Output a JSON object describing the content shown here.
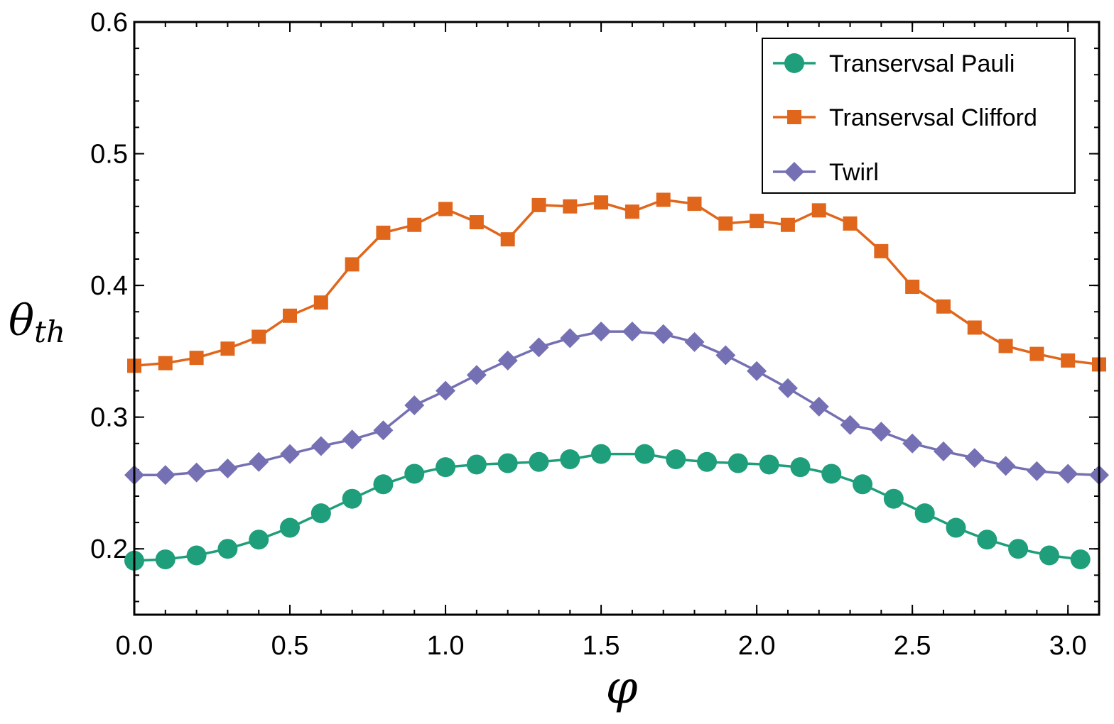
{
  "chart_data": {
    "type": "line",
    "title": "",
    "xlabel": "φ",
    "ylabel": "θ",
    "ylabel_subscript": "th",
    "xlim": [
      0,
      3.1
    ],
    "ylim": [
      0.15,
      0.6
    ],
    "x_ticks": [
      {
        "value": 0.0,
        "label": "0.0"
      },
      {
        "value": 0.5,
        "label": "0.5"
      },
      {
        "value": 1.0,
        "label": "1.0"
      },
      {
        "value": 1.5,
        "label": "1.5"
      },
      {
        "value": 2.0,
        "label": "2.0"
      },
      {
        "value": 2.5,
        "label": "2.5"
      },
      {
        "value": 3.0,
        "label": "3.0"
      }
    ],
    "y_ticks": [
      {
        "value": 0.2,
        "label": "0.2"
      },
      {
        "value": 0.3,
        "label": "0.3"
      },
      {
        "value": 0.4,
        "label": "0.4"
      },
      {
        "value": 0.5,
        "label": "0.5"
      },
      {
        "value": 0.6,
        "label": "0.6"
      }
    ],
    "x_minor_step": 0.1,
    "y_minor_step": 0.02,
    "legend_position": "top-right",
    "series": [
      {
        "name": "Transervsal Pauli",
        "color": "#1e9e7a",
        "marker": "circle",
        "x": [
          0.0,
          0.1,
          0.2,
          0.3,
          0.4,
          0.5,
          0.6,
          0.7,
          0.8,
          0.9,
          1.0,
          1.1,
          1.2,
          1.3,
          1.4,
          1.5,
          1.64,
          1.74,
          1.84,
          1.94,
          2.04,
          2.14,
          2.24,
          2.34,
          2.44,
          2.54,
          2.64,
          2.74,
          2.84,
          2.94,
          3.04
        ],
        "y": [
          0.191,
          0.192,
          0.195,
          0.2,
          0.207,
          0.216,
          0.227,
          0.238,
          0.249,
          0.257,
          0.262,
          0.264,
          0.265,
          0.266,
          0.268,
          0.272,
          0.272,
          0.268,
          0.266,
          0.265,
          0.264,
          0.262,
          0.257,
          0.249,
          0.238,
          0.227,
          0.216,
          0.207,
          0.2,
          0.195,
          0.192
        ]
      },
      {
        "name": "Transervsal Clifford",
        "color": "#e0661c",
        "marker": "square",
        "x": [
          0.0,
          0.1,
          0.2,
          0.3,
          0.4,
          0.5,
          0.6,
          0.7,
          0.8,
          0.9,
          1.0,
          1.1,
          1.2,
          1.3,
          1.4,
          1.5,
          1.6,
          1.7,
          1.8,
          1.9,
          2.0,
          2.1,
          2.2,
          2.3,
          2.4,
          2.5,
          2.6,
          2.7,
          2.8,
          2.9,
          3.0,
          3.1
        ],
        "y": [
          0.339,
          0.341,
          0.345,
          0.352,
          0.361,
          0.377,
          0.387,
          0.416,
          0.44,
          0.446,
          0.458,
          0.448,
          0.435,
          0.461,
          0.46,
          0.463,
          0.456,
          0.465,
          0.462,
          0.447,
          0.449,
          0.446,
          0.457,
          0.447,
          0.426,
          0.399,
          0.384,
          0.368,
          0.354,
          0.348,
          0.343,
          0.34
        ]
      },
      {
        "name": "Twirl",
        "color": "#7570b3",
        "marker": "diamond",
        "x": [
          0.0,
          0.1,
          0.2,
          0.3,
          0.4,
          0.5,
          0.6,
          0.7,
          0.8,
          0.9,
          1.0,
          1.1,
          1.2,
          1.3,
          1.4,
          1.5,
          1.6,
          1.7,
          1.8,
          1.9,
          2.0,
          2.1,
          2.2,
          2.3,
          2.4,
          2.5,
          2.6,
          2.7,
          2.8,
          2.9,
          3.0,
          3.1
        ],
        "y": [
          0.256,
          0.256,
          0.258,
          0.261,
          0.266,
          0.272,
          0.278,
          0.283,
          0.29,
          0.309,
          0.32,
          0.332,
          0.343,
          0.353,
          0.36,
          0.365,
          0.365,
          0.363,
          0.357,
          0.347,
          0.335,
          0.322,
          0.308,
          0.294,
          0.289,
          0.28,
          0.274,
          0.269,
          0.263,
          0.259,
          0.257,
          0.256
        ]
      }
    ]
  }
}
